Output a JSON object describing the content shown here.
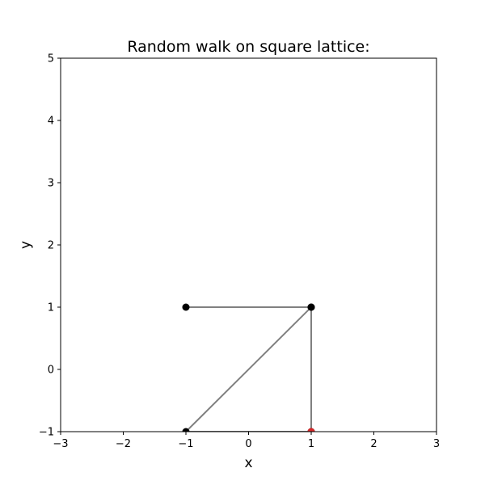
{
  "chart_data": {
    "type": "line",
    "title": "Random walk on square lattice:",
    "xlabel": "x",
    "ylabel": "y",
    "xlim": [
      -3,
      3
    ],
    "ylim": [
      -1,
      5
    ],
    "xticks": [
      -3,
      -2,
      -1,
      0,
      1,
      2,
      3
    ],
    "xtick_labels": [
      "−3",
      "−2",
      "−1",
      "0",
      "1",
      "2",
      "3"
    ],
    "yticks": [
      -1,
      0,
      1,
      2,
      3,
      4,
      5
    ],
    "ytick_labels": [
      "−1",
      "0",
      "1",
      "2",
      "3",
      "4",
      "5"
    ],
    "grid": false,
    "path": [
      {
        "x": -1,
        "y": 1
      },
      {
        "x": 1,
        "y": 1
      },
      {
        "x": -1,
        "y": -1
      },
      {
        "x": 1,
        "y": -1
      },
      {
        "x": 1,
        "y": 1
      }
    ],
    "line_color": "#808080",
    "point_color": "#000000",
    "current_point": {
      "x": 1,
      "y": -1
    },
    "current_point_color": "#d62728"
  }
}
